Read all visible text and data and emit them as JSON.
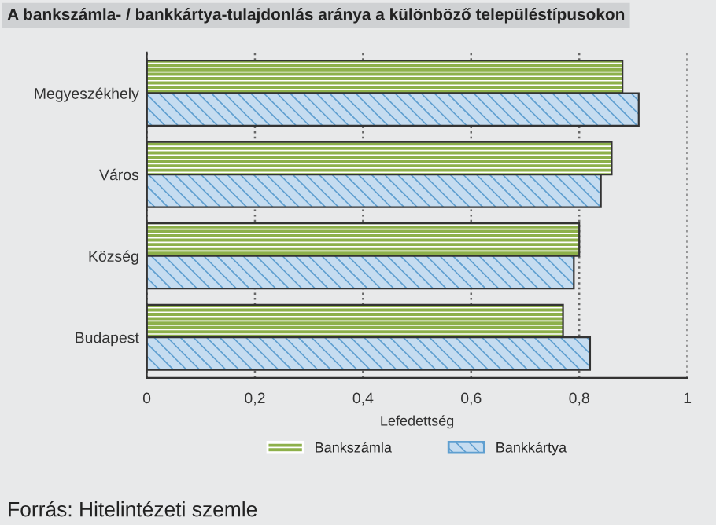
{
  "chart_data": {
    "type": "bar",
    "orientation": "horizontal",
    "title": "A bankszámla- / bankkártya-tulajdonlás aránya a különböző településtípusokon",
    "xlabel": "Lefedettség",
    "categories": [
      "Megyeszékhely",
      "Város",
      "Község",
      "Budapest"
    ],
    "series": [
      {
        "name": "Bankszámla",
        "color": "#8db04a",
        "values": [
          0.88,
          0.86,
          0.8,
          0.77
        ]
      },
      {
        "name": "Bankkártya",
        "color": "#c5dcf0",
        "values": [
          0.91,
          0.84,
          0.79,
          0.82
        ]
      }
    ],
    "xlim": [
      0,
      1
    ],
    "xticks": [
      0,
      {
        "value": 0.2,
        "label": "0,2"
      },
      {
        "value": 0.4,
        "label": "0,4"
      },
      {
        "value": 0.6,
        "label": "0,6"
      },
      {
        "value": 0.8,
        "label": "0,8"
      },
      1
    ],
    "grid": "x",
    "legend": "bottom",
    "annotations": [
      "Forrás: Hitelintézeti szemle"
    ]
  }
}
